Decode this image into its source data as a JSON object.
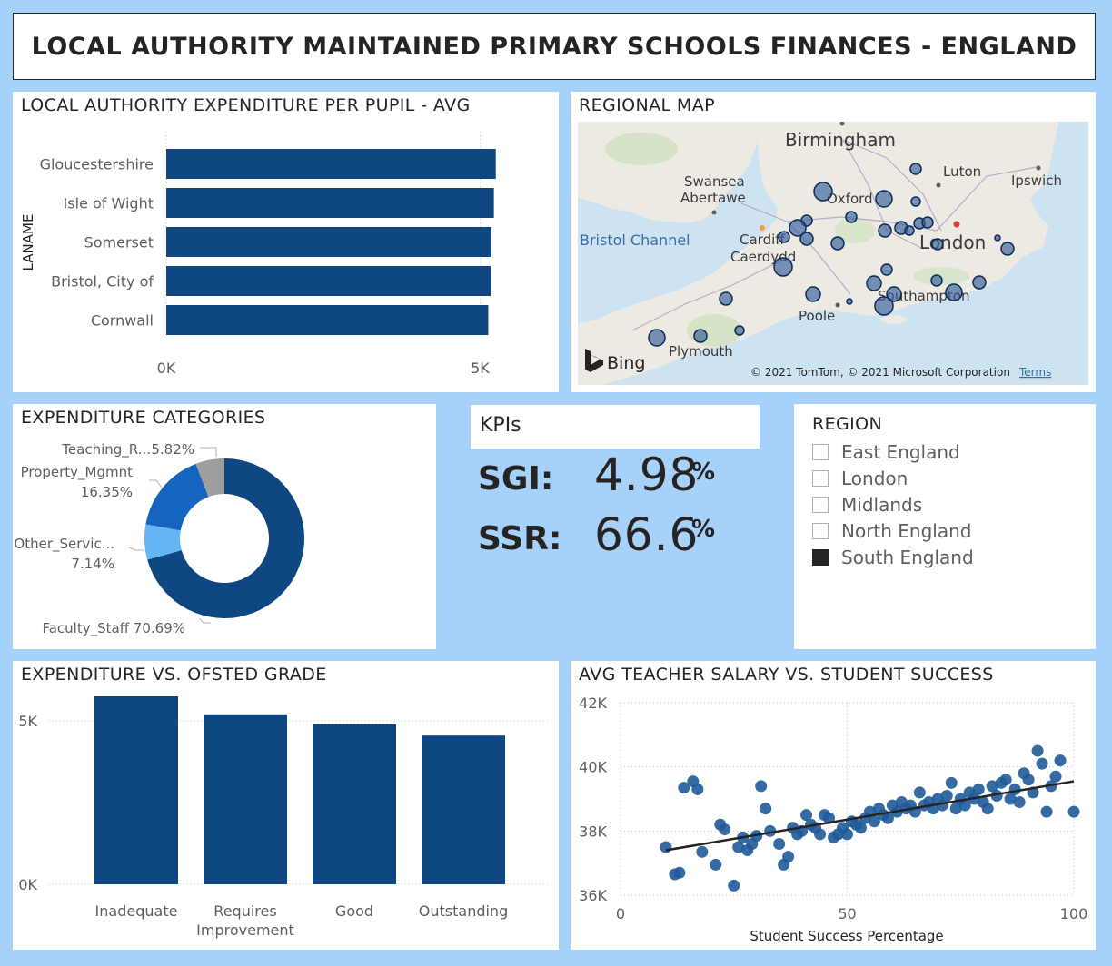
{
  "dashboard_title": "LOCAL AUTHORITY MAINTAINED PRIMARY SCHOOLS FINANCES - ENGLAND",
  "panels": {
    "la_expenditure_title": "LOCAL AUTHORITY EXPENDITURE PER PUPIL - AVG",
    "map_title": "REGIONAL MAP",
    "categories_title": "EXPENDITURE CATEGORIES",
    "ofsted_title": "EXPENDITURE VS. OFSTED GRADE",
    "salary_title": "AVG TEACHER SALARY VS. STUDENT SUCCESS"
  },
  "map": {
    "labels": [
      "Birmingham",
      "Luton",
      "Ipswich",
      "Swansea",
      "Abertawe",
      "Oxford",
      "Bristol Channel",
      "Cardiff",
      "Caerdydd",
      "London",
      "Southampton",
      "Poole",
      "Plymouth"
    ],
    "bing": "Bing",
    "copyright": "© 2021 TomTom, © 2021 Microsoft Corporation",
    "terms": "Terms"
  },
  "kpis": {
    "header": "KPIs",
    "items": [
      {
        "label": "SGI:",
        "value": "4.98",
        "unit": "%"
      },
      {
        "label": "SSR:",
        "value": "66.6",
        "unit": "%"
      }
    ]
  },
  "region_filter": {
    "title": "REGION",
    "items": [
      {
        "label": "East England",
        "checked": false
      },
      {
        "label": "London",
        "checked": false
      },
      {
        "label": "Midlands",
        "checked": false
      },
      {
        "label": "North England",
        "checked": false
      },
      {
        "label": "South England",
        "checked": true
      }
    ]
  },
  "colors": {
    "bar": "#0e4781",
    "donut_main": "#0e4781",
    "donut_mid": "#1565c0",
    "donut_light": "#64b5f6",
    "donut_grey": "#9e9e9e",
    "scatter": "#1f5a99",
    "background": "#a6d1fb"
  },
  "chart_data": [
    {
      "type": "bar",
      "orientation": "horizontal",
      "ylabel": "LANAME",
      "categories": [
        "Gloucestershire",
        "Isle of Wight",
        "Somerset",
        "Bristol, City of",
        "Cornwall"
      ],
      "values": [
        5250,
        5220,
        5180,
        5170,
        5130
      ],
      "xlim": [
        0,
        5500
      ],
      "ticks": [
        {
          "value": 0,
          "label": "0K"
        },
        {
          "value": 5000,
          "label": "5K"
        }
      ]
    },
    {
      "type": "pie",
      "donut": true,
      "slices": [
        {
          "name": "Faculty_Staff",
          "label": "Faculty_Staff 70.69%",
          "value": 70.69
        },
        {
          "name": "Other_Servic...",
          "label": "7.14%",
          "value": 7.14
        },
        {
          "name": "Property_Mgmnt",
          "label": "16.35%",
          "value": 16.35
        },
        {
          "name": "Teaching_R...",
          "label": "5.82%",
          "value": 5.82
        }
      ]
    },
    {
      "type": "bar",
      "categories": [
        "Inadequate",
        "Requires Improvement",
        "Good",
        "Outstanding"
      ],
      "values": [
        5750,
        5200,
        4900,
        4550
      ],
      "ylim": [
        0,
        6000
      ],
      "ticks": [
        {
          "value": 0,
          "label": "0K"
        },
        {
          "value": 5000,
          "label": "5K"
        }
      ],
      "grid": true
    },
    {
      "type": "scatter",
      "xlabel": "Student Success Percentage",
      "xlim": [
        0,
        100
      ],
      "ylim": [
        36000,
        42000
      ],
      "xticks": [
        0,
        50,
        100
      ],
      "yticks": [
        {
          "value": 36000,
          "label": "36K"
        },
        {
          "value": 38000,
          "label": "38K"
        },
        {
          "value": 40000,
          "label": "40K"
        },
        {
          "value": 42000,
          "label": "42K"
        }
      ],
      "trendline": [
        [
          10,
          37400
        ],
        [
          100,
          39550
        ]
      ],
      "points": [
        [
          10,
          37500
        ],
        [
          12,
          36650
        ],
        [
          13,
          36700
        ],
        [
          14,
          39350
        ],
        [
          16,
          39550
        ],
        [
          17,
          39300
        ],
        [
          18,
          37350
        ],
        [
          21,
          36950
        ],
        [
          22,
          38200
        ],
        [
          23,
          38050
        ],
        [
          25,
          36300
        ],
        [
          26,
          37500
        ],
        [
          27,
          37800
        ],
        [
          28,
          37400
        ],
        [
          29,
          37600
        ],
        [
          30,
          37850
        ],
        [
          31,
          39400
        ],
        [
          32,
          38700
        ],
        [
          33,
          38000
        ],
        [
          35,
          37600
        ],
        [
          36,
          36950
        ],
        [
          37,
          37200
        ],
        [
          38,
          38100
        ],
        [
          39,
          37900
        ],
        [
          40,
          38000
        ],
        [
          41,
          38500
        ],
        [
          42,
          38200
        ],
        [
          43,
          38100
        ],
        [
          44,
          37900
        ],
        [
          45,
          38500
        ],
        [
          46,
          38400
        ],
        [
          47,
          37800
        ],
        [
          48,
          37900
        ],
        [
          49,
          38100
        ],
        [
          50,
          37900
        ],
        [
          51,
          38300
        ],
        [
          52,
          38200
        ],
        [
          53,
          38100
        ],
        [
          54,
          38400
        ],
        [
          55,
          38600
        ],
        [
          56,
          38300
        ],
        [
          57,
          38700
        ],
        [
          58,
          38500
        ],
        [
          59,
          38400
        ],
        [
          60,
          38800
        ],
        [
          61,
          38600
        ],
        [
          62,
          38900
        ],
        [
          63,
          38700
        ],
        [
          64,
          38800
        ],
        [
          65,
          38600
        ],
        [
          66,
          39200
        ],
        [
          67,
          38800
        ],
        [
          68,
          38900
        ],
        [
          69,
          38700
        ],
        [
          70,
          39000
        ],
        [
          71,
          38800
        ],
        [
          72,
          39100
        ],
        [
          73,
          39500
        ],
        [
          74,
          38700
        ],
        [
          75,
          39000
        ],
        [
          76,
          38800
        ],
        [
          77,
          39200
        ],
        [
          78,
          39000
        ],
        [
          79,
          39300
        ],
        [
          80,
          38900
        ],
        [
          81,
          38700
        ],
        [
          82,
          39400
        ],
        [
          83,
          39100
        ],
        [
          84,
          39500
        ],
        [
          85,
          39600
        ],
        [
          86,
          39000
        ],
        [
          87,
          39300
        ],
        [
          88,
          38900
        ],
        [
          89,
          39800
        ],
        [
          90,
          39600
        ],
        [
          91,
          39200
        ],
        [
          92,
          40500
        ],
        [
          93,
          40100
        ],
        [
          94,
          38600
        ],
        [
          95,
          39400
        ],
        [
          96,
          39700
        ],
        [
          97,
          40200
        ],
        [
          100,
          38600
        ]
      ]
    }
  ]
}
